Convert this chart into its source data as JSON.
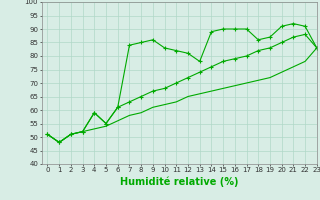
{
  "xlabel": "Humidité relative (%)",
  "x": [
    0,
    1,
    2,
    3,
    4,
    5,
    6,
    7,
    8,
    9,
    10,
    11,
    12,
    13,
    14,
    15,
    16,
    17,
    18,
    19,
    20,
    21,
    22,
    23
  ],
  "line1": [
    51,
    48,
    51,
    52,
    59,
    55,
    61,
    84,
    85,
    86,
    83,
    82,
    81,
    78,
    89,
    90,
    90,
    90,
    86,
    87,
    91,
    92,
    91,
    83
  ],
  "line2": [
    51,
    48,
    51,
    52,
    59,
    55,
    61,
    63,
    65,
    67,
    68,
    70,
    72,
    74,
    76,
    78,
    79,
    80,
    82,
    83,
    85,
    87,
    88,
    83
  ],
  "line3": [
    51,
    48,
    51,
    52,
    53,
    54,
    56,
    58,
    59,
    61,
    62,
    63,
    65,
    66,
    67,
    68,
    69,
    70,
    71,
    72,
    74,
    76,
    78,
    83
  ],
  "bg_color": "#d8ede5",
  "grid_color": "#b0d8c8",
  "line_color": "#00aa00",
  "ylim": [
    40,
    100
  ],
  "xlim": [
    -0.5,
    23
  ],
  "yticks": [
    40,
    45,
    50,
    55,
    60,
    65,
    70,
    75,
    80,
    85,
    90,
    95,
    100
  ],
  "xticks": [
    0,
    1,
    2,
    3,
    4,
    5,
    6,
    7,
    8,
    9,
    10,
    11,
    12,
    13,
    14,
    15,
    16,
    17,
    18,
    19,
    20,
    21,
    22,
    23
  ],
  "linewidth": 0.8,
  "fontsize_label": 7,
  "fontsize_tick": 5
}
